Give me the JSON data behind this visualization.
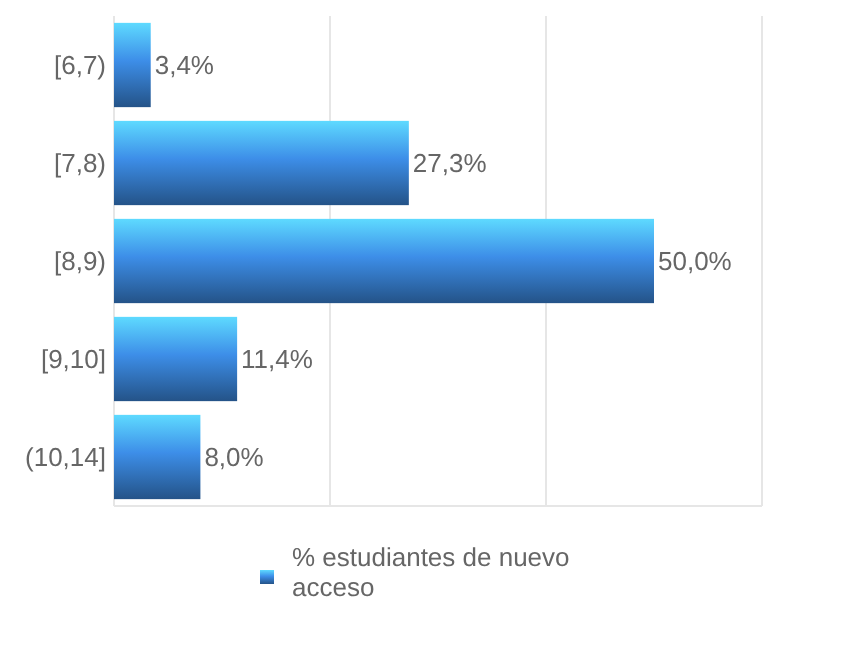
{
  "chart_data": {
    "type": "bar",
    "orientation": "horizontal",
    "categories": [
      "[6,7)",
      "[7,8)",
      "[8,9)",
      "[9,10]",
      "(10,14]"
    ],
    "series": [
      {
        "name": "% estudiantes de nuevo acceso",
        "color": "#3d8ee8",
        "values": [
          3.4,
          27.3,
          50.0,
          11.4,
          8.0
        ],
        "value_labels": [
          "3,4%",
          "27,3%",
          "50,0%",
          "11,4%",
          "8,0%"
        ]
      }
    ],
    "xlim": [
      0,
      60
    ],
    "xticks": [
      {
        "value": 0,
        "label": null
      },
      {
        "value": 20,
        "label": null
      },
      {
        "value": 40,
        "label": null
      },
      {
        "value": 60,
        "label": null
      }
    ],
    "tick_labels": "y",
    "grid": "x",
    "legend": "bottom"
  }
}
